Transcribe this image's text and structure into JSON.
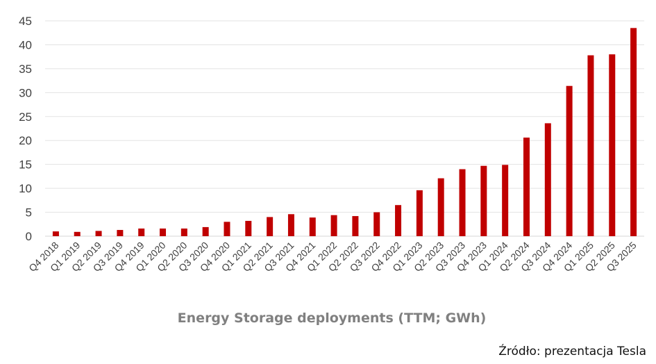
{
  "chart_data": {
    "type": "bar",
    "title": "Energy Storage deployments (TTM; GWh)",
    "xlabel": "",
    "ylabel": "",
    "ylim": [
      0,
      45
    ],
    "yticks": [
      0,
      5,
      10,
      15,
      20,
      25,
      30,
      35,
      40,
      45
    ],
    "grid": true,
    "bar_color": "#c00000",
    "categories": [
      "Q4 2018",
      "Q1 2019",
      "Q2 2019",
      "Q3 2019",
      "Q4 2019",
      "Q1 2020",
      "Q2 2020",
      "Q3 2020",
      "Q4 2020",
      "Q1 2021",
      "Q2 2021",
      "Q3 2021",
      "Q4 2021",
      "Q1 2022",
      "Q2 2022",
      "Q3 2022",
      "Q4 2022",
      "Q1 2023",
      "Q2 2023",
      "Q3 2023",
      "Q4 2023",
      "Q1 2024",
      "Q2 2024",
      "Q3 2024",
      "Q4 2024",
      "Q1 2025",
      "Q2 2025",
      "Q3 2025"
    ],
    "values": [
      1.0,
      0.9,
      1.1,
      1.3,
      1.6,
      1.6,
      1.6,
      1.9,
      3.0,
      3.2,
      4.0,
      4.6,
      3.9,
      4.4,
      4.2,
      5.0,
      6.5,
      9.6,
      12.1,
      14.0,
      14.7,
      14.9,
      20.6,
      23.6,
      31.4,
      37.8,
      38.0,
      43.5
    ]
  },
  "source": "Źródło: prezentacja Tesla"
}
